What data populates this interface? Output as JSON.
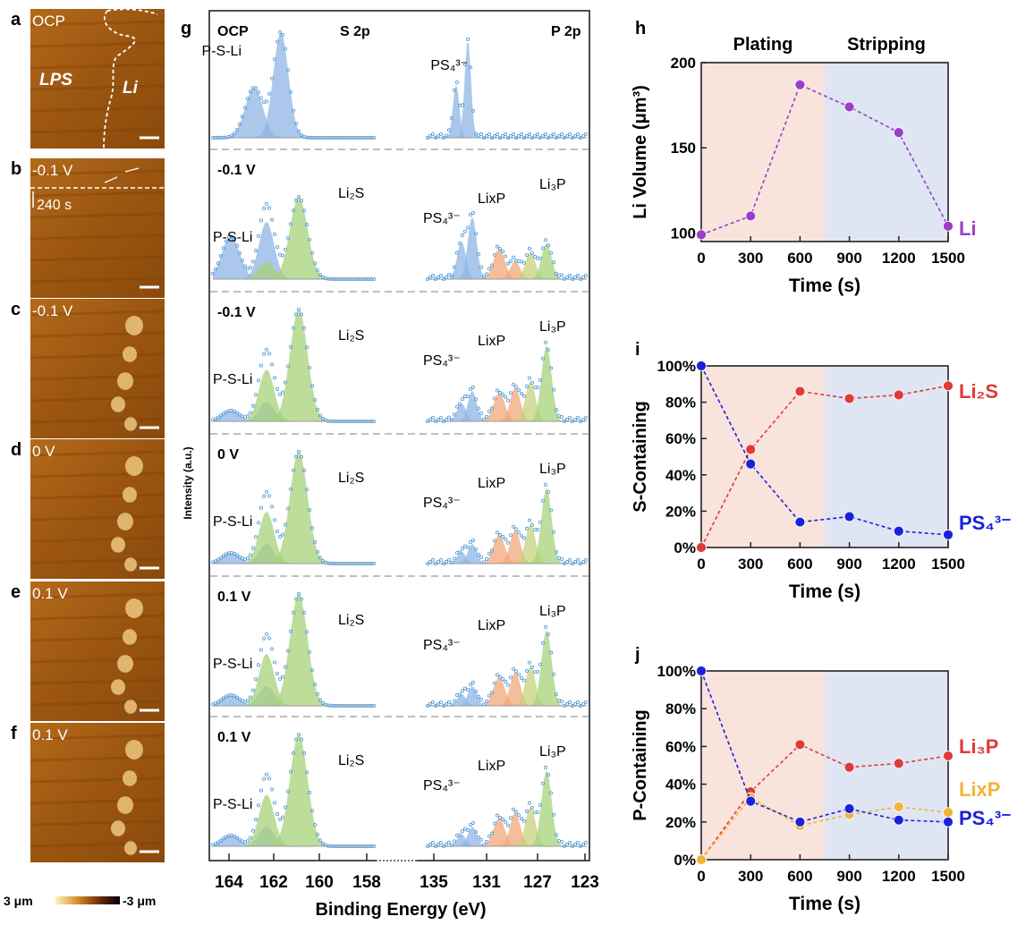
{
  "figure": {
    "afm_panels": [
      {
        "letter": "a",
        "label": "OCP"
      },
      {
        "letter": "b",
        "label": "-0.1 V",
        "time_label": "240 s"
      },
      {
        "letter": "c",
        "label": "-0.1 V"
      },
      {
        "letter": "d",
        "label": "0 V"
      },
      {
        "letter": "e",
        "label": "0.1 V"
      },
      {
        "letter": "f",
        "label": "0.1 V"
      }
    ],
    "afm_annotations": {
      "lps": "LPS",
      "li": "Li"
    },
    "colorbar": {
      "max": "3 μm",
      "min": "-3 μm"
    },
    "xps": {
      "letter": "g",
      "s_title": "S 2p",
      "p_title": "P 2p",
      "ylabel": "Intensity (a.u.)",
      "xlabel": "Binding Energy (eV)",
      "s_ticks": [
        "164",
        "162",
        "160",
        "158"
      ],
      "p_ticks": [
        "135",
        "131",
        "127",
        "123"
      ],
      "rows": [
        {
          "cond": "OCP",
          "s_labels": [
            "P-S-Li"
          ],
          "p_labels": [
            "PS₄³⁻"
          ]
        },
        {
          "cond": "-0.1 V",
          "s_labels": [
            "P-S-Li",
            "Li₂S"
          ],
          "p_labels": [
            "PS₄³⁻",
            "LixP",
            "Li₃P"
          ]
        },
        {
          "cond": "-0.1 V",
          "s_labels": [
            "P-S-Li",
            "Li₂S"
          ],
          "p_labels": [
            "PS₄³⁻",
            "LixP",
            "Li₃P"
          ]
        },
        {
          "cond": "0 V",
          "s_labels": [
            "P-S-Li",
            "Li₂S"
          ],
          "p_labels": [
            "PS₄³⁻",
            "LixP",
            "Li₃P"
          ]
        },
        {
          "cond": "0.1 V",
          "s_labels": [
            "P-S-Li",
            "Li₂S"
          ],
          "p_labels": [
            "PS₄³⁻",
            "LixP",
            "Li₃P"
          ]
        },
        {
          "cond": "0.1 V",
          "s_labels": [
            "P-S-Li",
            "Li₂S"
          ],
          "p_labels": [
            "PS₄³⁻",
            "LixP",
            "Li₃P"
          ]
        }
      ]
    }
  },
  "chart_data": [
    {
      "panel": "h",
      "type": "line",
      "xlabel": "Time (s)",
      "ylabel": "Li Volume (μm³)",
      "x": [
        0,
        300,
        600,
        900,
        1200,
        1500
      ],
      "xlim": [
        0,
        1500
      ],
      "ylim": [
        95,
        200
      ],
      "yticks": [
        100,
        150,
        200
      ],
      "regions": [
        {
          "label": "Plating",
          "from": 0,
          "to": 750,
          "color": "#f8e4dc"
        },
        {
          "label": "Stripping",
          "from": 750,
          "to": 1500,
          "color": "#dfe5f3"
        }
      ],
      "series": [
        {
          "name": "Li",
          "color": "#9b3fc8",
          "values": [
            99,
            110,
            187,
            174,
            159,
            104
          ]
        }
      ]
    },
    {
      "panel": "i",
      "type": "line",
      "xlabel": "Time (s)",
      "ylabel": "S-Containing",
      "x": [
        0,
        300,
        600,
        900,
        1200,
        1500
      ],
      "xlim": [
        0,
        1500
      ],
      "ylim": [
        0,
        100
      ],
      "yticks": [
        0,
        20,
        40,
        60,
        80,
        100
      ],
      "regions": [
        {
          "from": 0,
          "to": 750,
          "color": "#f8e4dc"
        },
        {
          "from": 750,
          "to": 1500,
          "color": "#dfe5f3"
        }
      ],
      "series": [
        {
          "name": "Li₂S",
          "color": "#e03a3a",
          "values": [
            0,
            54,
            86,
            82,
            84,
            89
          ]
        },
        {
          "name": "PS₄³⁻",
          "color": "#1c22d8",
          "values": [
            100,
            46,
            14,
            17,
            9,
            7
          ]
        }
      ]
    },
    {
      "panel": "j",
      "type": "line",
      "xlabel": "Time (s)",
      "ylabel": "P-Containing",
      "x": [
        0,
        300,
        600,
        900,
        1200,
        1500
      ],
      "xlim": [
        0,
        1500
      ],
      "ylim": [
        0,
        100
      ],
      "yticks": [
        0,
        20,
        40,
        60,
        80,
        100
      ],
      "regions": [
        {
          "from": 0,
          "to": 750,
          "color": "#f8e4dc"
        },
        {
          "from": 750,
          "to": 1500,
          "color": "#dfe5f3"
        }
      ],
      "series": [
        {
          "name": "Li₃P",
          "color": "#e03a3a",
          "values": [
            0,
            36,
            61,
            49,
            51,
            55
          ]
        },
        {
          "name": "LixP",
          "color": "#f2b33a",
          "values": [
            0,
            33,
            18,
            24,
            28,
            25
          ]
        },
        {
          "name": "PS₄³⁻",
          "color": "#1c22d8",
          "values": [
            100,
            31,
            20,
            27,
            21,
            20
          ]
        }
      ]
    }
  ]
}
